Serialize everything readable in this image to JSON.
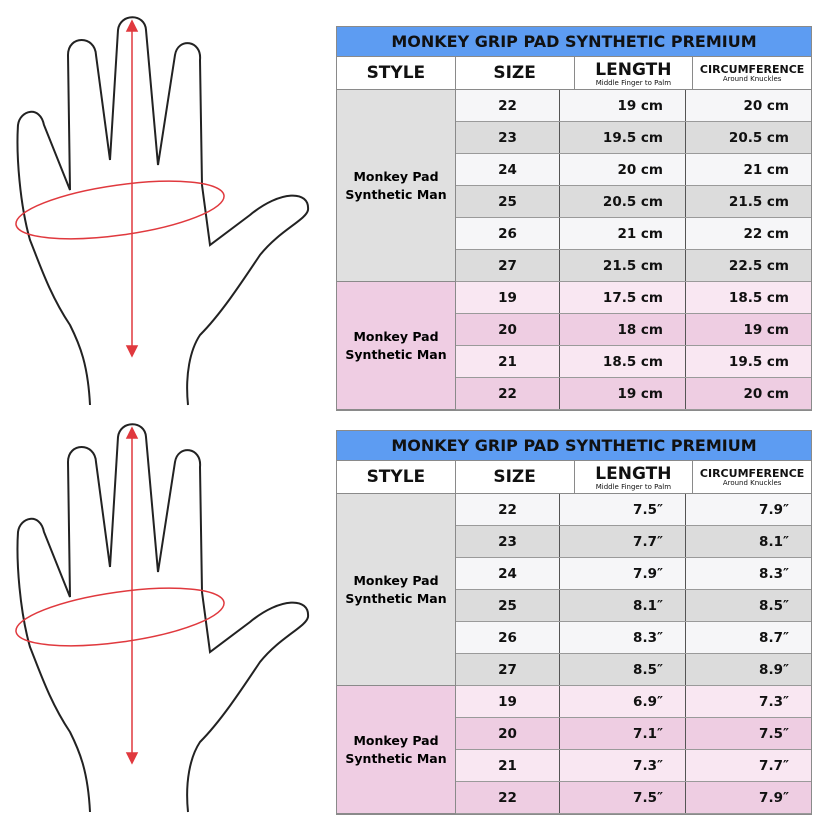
{
  "colors": {
    "title_bg": "#5d9cf2",
    "gray": "#e0e0e0",
    "white_row": "#f6f6f8",
    "gray_row": "#dcdcdc",
    "pink": "#efcde3",
    "pink_light": "#f9e7f2",
    "pink_row": "#eecde2",
    "arrow": "#e0393e"
  },
  "tables": [
    {
      "title": "MONKEY GRIP PAD SYNTHETIC PREMIUM",
      "headers": {
        "style": "STYLE",
        "size": "SIZE",
        "length": "LENGTH",
        "length_sub": "Middle Finger to Palm",
        "circ": "CIRCUMFERENCE",
        "circ_sub": "Around Knuckles"
      },
      "groups": [
        {
          "style": "Monkey Pad Synthetic Man",
          "theme": "gray",
          "rows": [
            [
              "22",
              "19 cm",
              "20 cm"
            ],
            [
              "23",
              "19.5 cm",
              "20.5 cm"
            ],
            [
              "24",
              "20 cm",
              "21 cm"
            ],
            [
              "25",
              "20.5 cm",
              "21.5 cm"
            ],
            [
              "26",
              "21 cm",
              "22 cm"
            ],
            [
              "27",
              "21.5 cm",
              "22.5 cm"
            ]
          ]
        },
        {
          "style": "Monkey Pad Synthetic Man",
          "theme": "pink",
          "rows": [
            [
              "19",
              "17.5 cm",
              "18.5 cm"
            ],
            [
              "20",
              "18 cm",
              "19 cm"
            ],
            [
              "21",
              "18.5 cm",
              "19.5 cm"
            ],
            [
              "22",
              "19 cm",
              "20 cm"
            ]
          ]
        }
      ]
    },
    {
      "title": "MONKEY GRIP PAD SYNTHETIC PREMIUM",
      "headers": {
        "style": "STYLE",
        "size": "SIZE",
        "length": "LENGTH",
        "length_sub": "Middle Finger to Palm",
        "circ": "CIRCUMFERENCE",
        "circ_sub": "Around Knuckles"
      },
      "groups": [
        {
          "style": "Monkey Pad Synthetic Man",
          "theme": "gray",
          "rows": [
            [
              "22",
              "7.5″",
              "7.9″"
            ],
            [
              "23",
              "7.7″",
              "8.1″"
            ],
            [
              "24",
              "7.9″",
              "8.3″"
            ],
            [
              "25",
              "8.1″",
              "8.5″"
            ],
            [
              "26",
              "8.3″",
              "8.7″"
            ],
            [
              "27",
              "8.5″",
              "8.9″"
            ]
          ]
        },
        {
          "style": "Monkey Pad Synthetic Man",
          "theme": "pink",
          "rows": [
            [
              "19",
              "6.9″",
              "7.3″"
            ],
            [
              "20",
              "7.1″",
              "7.5″"
            ],
            [
              "21",
              "7.3″",
              "7.7″"
            ],
            [
              "22",
              "7.5″",
              "7.9″"
            ]
          ]
        }
      ]
    }
  ]
}
